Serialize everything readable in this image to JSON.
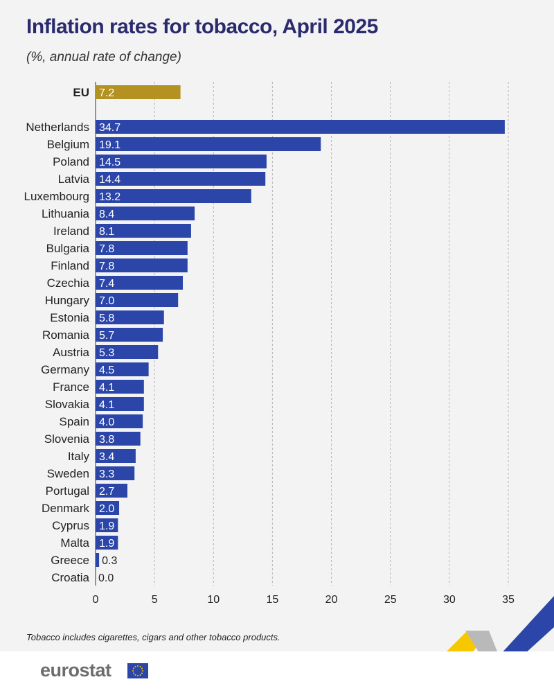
{
  "title": "Inflation rates for tobacco, April 2025",
  "subtitle": "(%, annual rate of change)",
  "footnote": "Tobacco includes cigarettes, cigars and other tobacco products.",
  "brand": "eurostat",
  "colors": {
    "eu_bar": "#b39221",
    "country_bar": "#2b46a8",
    "grid": "#b5b5b5",
    "title": "#2a2a6e"
  },
  "chart_data": {
    "type": "bar",
    "orientation": "horizontal",
    "categories": [
      "EU",
      "Netherlands",
      "Belgium",
      "Poland",
      "Latvia",
      "Luxembourg",
      "Lithuania",
      "Ireland",
      "Bulgaria",
      "Finland",
      "Czechia",
      "Hungary",
      "Estonia",
      "Romania",
      "Austria",
      "Germany",
      "France",
      "Slovakia",
      "Spain",
      "Slovenia",
      "Italy",
      "Sweden",
      "Portugal",
      "Denmark",
      "Cyprus",
      "Malta",
      "Greece",
      "Croatia"
    ],
    "values": [
      7.2,
      34.7,
      19.1,
      14.5,
      14.4,
      13.2,
      8.4,
      8.1,
      7.8,
      7.8,
      7.4,
      7.0,
      5.8,
      5.7,
      5.3,
      4.5,
      4.1,
      4.1,
      4.0,
      3.8,
      3.4,
      3.3,
      2.7,
      2.0,
      1.9,
      1.9,
      0.3,
      0.0
    ],
    "value_labels": [
      "7.2",
      "34.7",
      "19.1",
      "14.5",
      "14.4",
      "13.2",
      "8.4",
      "8.1",
      "7.8",
      "7.8",
      "7.4",
      "7.0",
      "5.8",
      "5.7",
      "5.3",
      "4.5",
      "4.1",
      "4.1",
      "4.0",
      "3.8",
      "3.4",
      "3.3",
      "2.7",
      "2.0",
      "1.9",
      "1.9",
      "0.3",
      "0.0"
    ],
    "highlight": "EU",
    "xlim": [
      0,
      35
    ],
    "xticks": [
      0,
      5,
      10,
      15,
      20,
      25,
      30,
      35
    ],
    "grid": true,
    "xlabel": "",
    "ylabel": ""
  }
}
